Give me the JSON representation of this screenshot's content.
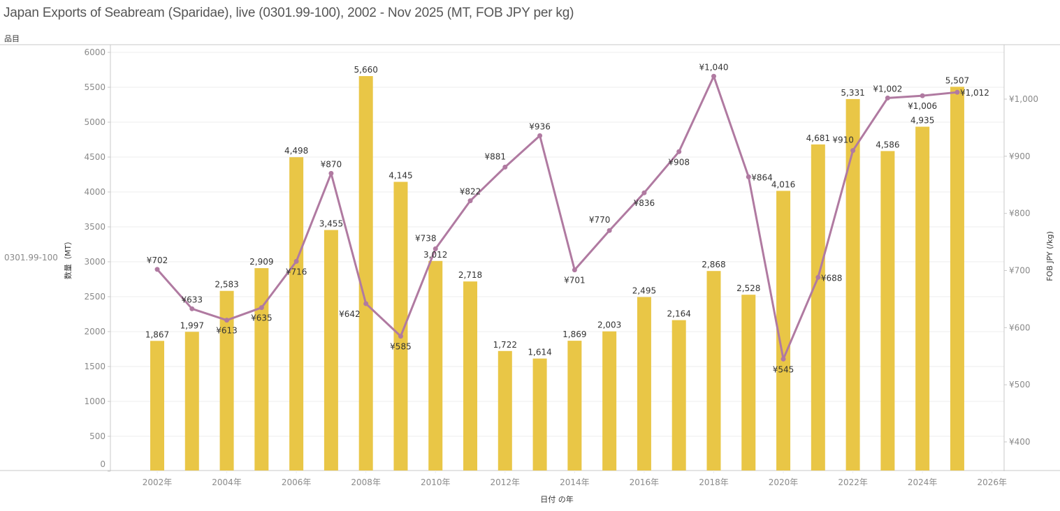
{
  "header": {
    "title": "Japan Exports of Seabream (Sparidae), live (0301.99-100), 2002 - Nov 2025 (MT, FOB JPY per kg)",
    "row_header": "品目",
    "row_label": "0301.99-100"
  },
  "colors": {
    "bar": "#E9C646",
    "line": "#B07AA1",
    "grid": "#eeeeee",
    "axis": "#c8c8c8"
  },
  "chart_data": {
    "type": "bar+line",
    "title": "Japan Exports of Seabream (Sparidae), live (0301.99-100), 2002 - Nov 2025 (MT, FOB JPY per kg)",
    "xlabel": "日付 の年",
    "ylabel_left": "数量（MT）",
    "ylabel_right": "FOB JPY (/kg)",
    "x": [
      2002,
      2003,
      2004,
      2005,
      2006,
      2007,
      2008,
      2009,
      2010,
      2011,
      2012,
      2013,
      2014,
      2015,
      2016,
      2017,
      2018,
      2019,
      2020,
      2021,
      2022,
      2023,
      2024,
      2025
    ],
    "x_ticks": [
      "2002年",
      "2004年",
      "2006年",
      "2008年",
      "2010年",
      "2012年",
      "2014年",
      "2016年",
      "2018年",
      "2020年",
      "2022年",
      "2024年",
      "2026年"
    ],
    "x_tick_values": [
      2002,
      2004,
      2006,
      2008,
      2010,
      2012,
      2014,
      2016,
      2018,
      2020,
      2022,
      2024,
      2026
    ],
    "xlim": [
      2000.7,
      2026.4
    ],
    "ylim_left": [
      0,
      6000
    ],
    "y_ticks_left": [
      0,
      500,
      1000,
      1500,
      2000,
      2500,
      3000,
      3500,
      4000,
      4500,
      5000,
      5500,
      6000
    ],
    "ylim_right": [
      350,
      1000
    ],
    "y_ticks_right": [
      400,
      500,
      600,
      700,
      800,
      900,
      1000
    ],
    "y_tick_labels_right": [
      "¥400",
      "¥500",
      "¥600",
      "¥700",
      "¥800",
      "¥900",
      "¥1,000"
    ],
    "grid": true,
    "series": [
      {
        "name": "数量（MT）",
        "type": "bar",
        "axis": "left",
        "values": [
          1867,
          1997,
          2583,
          2909,
          4498,
          3455,
          5660,
          4145,
          3012,
          2718,
          1722,
          1614,
          1869,
          2003,
          2495,
          2164,
          2868,
          2528,
          4016,
          4681,
          5331,
          4586,
          4935,
          5507
        ],
        "labels": [
          "1,867",
          "1,997",
          "2,583",
          "2,909",
          "4,498",
          "3,455",
          "5,660",
          "4,145",
          "3,012",
          "2,718",
          "1,722",
          "1,614",
          "1,869",
          "2,003",
          "2,495",
          "2,164",
          "2,868",
          "2,528",
          "4,016",
          "4,681",
          "5,331",
          "4,586",
          "4,935",
          "5,507"
        ]
      },
      {
        "name": "FOB JPY (/kg)",
        "type": "line",
        "axis": "right",
        "values": [
          702,
          633,
          613,
          635,
          716,
          870,
          642,
          585,
          738,
          822,
          881,
          936,
          701,
          770,
          836,
          908,
          1040,
          864,
          545,
          688,
          910,
          1002,
          1006,
          1012
        ],
        "labels": [
          "¥702",
          "¥633",
          "¥613",
          "¥635",
          "¥716",
          "¥870",
          "¥642",
          "¥585",
          "¥738",
          "¥822",
          "¥881",
          "¥936",
          "¥701",
          "¥770",
          "¥836",
          "¥908",
          "¥1,040",
          "¥864",
          "¥545",
          "¥688",
          "¥910",
          "¥1,002",
          "¥1,006",
          "¥1,012"
        ],
        "label_side": [
          "above",
          "above",
          "below",
          "below",
          "below",
          "above",
          "left",
          "below",
          "above-left",
          "above",
          "above-left",
          "above",
          "below",
          "above-left",
          "below",
          "below",
          "above",
          "right",
          "below",
          "right",
          "above-left",
          "above",
          "below",
          "right"
        ]
      }
    ]
  }
}
